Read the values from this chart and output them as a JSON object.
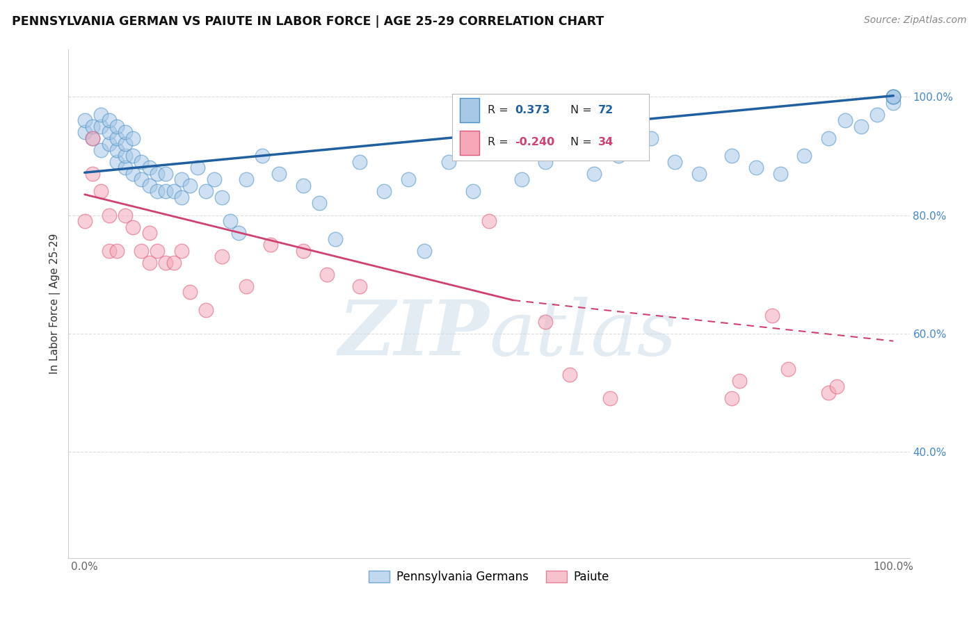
{
  "title": "PENNSYLVANIA GERMAN VS PAIUTE IN LABOR FORCE | AGE 25-29 CORRELATION CHART",
  "source": "Source: ZipAtlas.com",
  "ylabel": "In Labor Force | Age 25-29",
  "xlim": [
    -0.02,
    1.02
  ],
  "ylim": [
    0.22,
    1.08
  ],
  "x_ticks": [
    0.0,
    0.25,
    0.5,
    0.75,
    1.0
  ],
  "y_ticks": [
    0.4,
    0.6,
    0.8,
    1.0
  ],
  "blue_scatter_x": [
    0.0,
    0.0,
    0.01,
    0.01,
    0.02,
    0.02,
    0.02,
    0.03,
    0.03,
    0.03,
    0.04,
    0.04,
    0.04,
    0.04,
    0.05,
    0.05,
    0.05,
    0.05,
    0.06,
    0.06,
    0.06,
    0.07,
    0.07,
    0.08,
    0.08,
    0.09,
    0.09,
    0.1,
    0.1,
    0.11,
    0.12,
    0.12,
    0.13,
    0.14,
    0.15,
    0.16,
    0.17,
    0.18,
    0.19,
    0.2,
    0.22,
    0.24,
    0.27,
    0.29,
    0.31,
    0.34,
    0.37,
    0.4,
    0.42,
    0.45,
    0.48,
    0.51,
    0.54,
    0.57,
    0.6,
    0.63,
    0.66,
    0.7,
    0.73,
    0.76,
    0.8,
    0.83,
    0.86,
    0.89,
    0.92,
    0.94,
    0.96,
    0.98,
    1.0,
    1.0,
    1.0,
    1.0
  ],
  "blue_scatter_y": [
    0.94,
    0.96,
    0.93,
    0.95,
    0.91,
    0.95,
    0.97,
    0.92,
    0.94,
    0.96,
    0.89,
    0.91,
    0.93,
    0.95,
    0.88,
    0.9,
    0.92,
    0.94,
    0.87,
    0.9,
    0.93,
    0.86,
    0.89,
    0.85,
    0.88,
    0.84,
    0.87,
    0.84,
    0.87,
    0.84,
    0.83,
    0.86,
    0.85,
    0.88,
    0.84,
    0.86,
    0.83,
    0.79,
    0.77,
    0.86,
    0.9,
    0.87,
    0.85,
    0.82,
    0.76,
    0.89,
    0.84,
    0.86,
    0.74,
    0.89,
    0.84,
    0.92,
    0.86,
    0.89,
    0.92,
    0.87,
    0.9,
    0.93,
    0.89,
    0.87,
    0.9,
    0.88,
    0.87,
    0.9,
    0.93,
    0.96,
    0.95,
    0.97,
    0.99,
    1.0,
    1.0,
    1.0
  ],
  "pink_scatter_x": [
    0.0,
    0.01,
    0.01,
    0.02,
    0.03,
    0.03,
    0.04,
    0.05,
    0.06,
    0.07,
    0.08,
    0.08,
    0.09,
    0.1,
    0.11,
    0.12,
    0.13,
    0.15,
    0.17,
    0.2,
    0.23,
    0.27,
    0.3,
    0.34,
    0.5,
    0.57,
    0.6,
    0.65,
    0.8,
    0.81,
    0.85,
    0.87,
    0.92,
    0.93
  ],
  "pink_scatter_y": [
    0.79,
    0.87,
    0.93,
    0.84,
    0.74,
    0.8,
    0.74,
    0.8,
    0.78,
    0.74,
    0.72,
    0.77,
    0.74,
    0.72,
    0.72,
    0.74,
    0.67,
    0.64,
    0.73,
    0.68,
    0.75,
    0.74,
    0.7,
    0.68,
    0.79,
    0.62,
    0.53,
    0.49,
    0.49,
    0.52,
    0.63,
    0.54,
    0.5,
    0.51
  ],
  "blue_line_x0": 0.0,
  "blue_line_x1": 1.0,
  "blue_line_y0": 0.872,
  "blue_line_y1": 1.002,
  "pink_line_x0": 0.0,
  "pink_line_x1": 0.53,
  "pink_line_x1_dash": 1.0,
  "pink_line_y0": 0.835,
  "pink_line_y1": 0.656,
  "pink_line_y1_dash": 0.587,
  "blue_dot_color": "#a8c8e8",
  "blue_edge_color": "#4a90c4",
  "pink_dot_color": "#f4a8b8",
  "pink_edge_color": "#e05878",
  "blue_line_color": "#2060a0",
  "pink_line_color": "#d04070",
  "r_blue": "0.373",
  "n_blue": "72",
  "r_pink": "-0.240",
  "n_pink": "34",
  "legend_label_blue": "Pennsylvania Germans",
  "legend_label_pink": "Paiute",
  "watermark_zip": "ZIP",
  "watermark_atlas": "atlas",
  "background_color": "#ffffff",
  "grid_color": "#dddddd",
  "ytick_color": "#4488cc",
  "xtick_color": "#666666"
}
